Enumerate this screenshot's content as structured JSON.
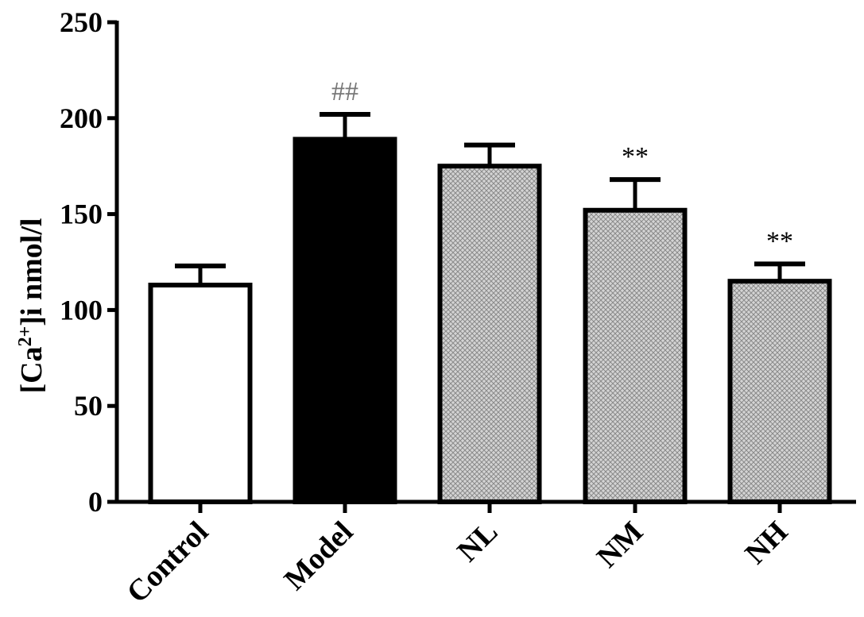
{
  "chart_data": {
    "type": "bar",
    "ylabel_parts": {
      "open": "[Ca",
      "superscript": "2+",
      "close": "]i nmol/l"
    },
    "categories": [
      "Control",
      "Model",
      "NL",
      "NM",
      "NH"
    ],
    "values": [
      113,
      189,
      175,
      152,
      115
    ],
    "errors": [
      10,
      13,
      11,
      16,
      9
    ],
    "annotations": [
      "",
      "##",
      "",
      "**",
      "**"
    ],
    "fills": [
      "white",
      "black",
      "crosshatch",
      "crosshatch",
      "crosshatch"
    ],
    "ylim": [
      0,
      250
    ],
    "yticks": [
      "0",
      "50",
      "100",
      "150",
      "200",
      "250"
    ],
    "grid": false,
    "legend": "none"
  }
}
